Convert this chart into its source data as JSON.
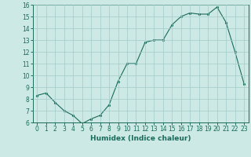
{
  "x": [
    0,
    1,
    2,
    3,
    4,
    5,
    6,
    7,
    8,
    9,
    10,
    11,
    12,
    13,
    14,
    15,
    16,
    17,
    18,
    19,
    20,
    21,
    22,
    23
  ],
  "y": [
    8.3,
    8.5,
    7.7,
    7.0,
    6.6,
    5.9,
    6.3,
    6.6,
    7.5,
    9.5,
    11.0,
    11.0,
    12.8,
    13.0,
    13.0,
    14.3,
    15.0,
    15.3,
    15.2,
    15.2,
    15.8,
    14.5,
    12.0,
    9.3
  ],
  "xlabel": "Humidex (Indice chaleur)",
  "ylim": [
    6,
    16
  ],
  "xlim_min": -0.5,
  "xlim_max": 23.5,
  "yticks": [
    6,
    7,
    8,
    9,
    10,
    11,
    12,
    13,
    14,
    15,
    16
  ],
  "xticks": [
    0,
    1,
    2,
    3,
    4,
    5,
    6,
    7,
    8,
    9,
    10,
    11,
    12,
    13,
    14,
    15,
    16,
    17,
    18,
    19,
    20,
    21,
    22,
    23
  ],
  "line_color": "#1a6b5a",
  "marker_color": "#1a6b5a",
  "bg_color": "#cce9e5",
  "grid_color": "#a0ccc8",
  "tick_label_color": "#1a6b5a",
  "xlabel_color": "#1a6b5a",
  "axis_color": "#1a6b5a",
  "tick_fontsize": 5.5,
  "xlabel_fontsize": 6.5
}
